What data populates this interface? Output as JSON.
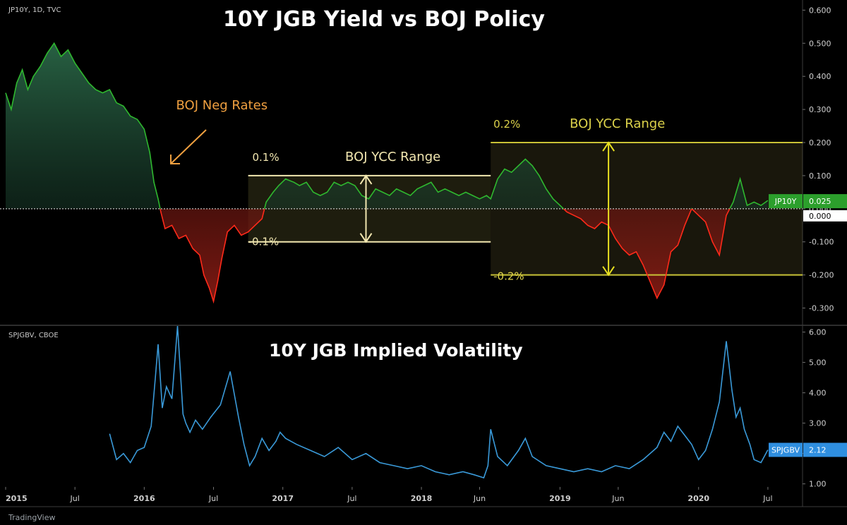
{
  "colors": {
    "up": "#2fb82f",
    "down": "#ff2a1a",
    "vol": "#3a9ad9",
    "ycc_2017": "#f2e7b0",
    "ycc_2018": "#c9c236",
    "neg_rates": "#f0a040",
    "tag_up": "#2c9f2c",
    "tag_vol": "#2f8fe0"
  },
  "top_panel": {
    "symbol": "JP10Y, 1D, TVC",
    "title": "10Y JGB Yield vs BOJ Policy",
    "last_label": "JP10Y",
    "last_value": "0.025"
  },
  "bottom_panel": {
    "symbol": "SPJGBV, CBOE",
    "title": "10Y JGB Implied Volatility",
    "last_label": "SPJGBV",
    "last_value": "2.12"
  },
  "footer": {
    "brand": "TradingView"
  },
  "chart_data": [
    {
      "type": "line",
      "title": "10Y JGB Yield vs BOJ Policy",
      "series_name": "JP10Y",
      "xlim": [
        2015.0,
        2020.75
      ],
      "ylim": [
        -0.35,
        0.62
      ],
      "y_ticks": [
        "0.600",
        "0.500",
        "0.400",
        "0.300",
        "0.200",
        "0.100",
        "0.000",
        "-0.100",
        "-0.200",
        "-0.300"
      ],
      "x": [
        2015.0,
        2015.04,
        2015.08,
        2015.12,
        2015.16,
        2015.2,
        2015.25,
        2015.3,
        2015.35,
        2015.4,
        2015.45,
        2015.5,
        2015.55,
        2015.6,
        2015.65,
        2015.7,
        2015.75,
        2015.8,
        2015.85,
        2015.9,
        2015.95,
        2016.0,
        2016.04,
        2016.07,
        2016.1,
        2016.12,
        2016.15,
        2016.2,
        2016.25,
        2016.3,
        2016.35,
        2016.4,
        2016.43,
        2016.47,
        2016.5,
        2016.53,
        2016.56,
        2016.6,
        2016.65,
        2016.7,
        2016.75,
        2016.8,
        2016.85,
        2016.88,
        2016.93,
        2016.97,
        2017.02,
        2017.08,
        2017.12,
        2017.17,
        2017.22,
        2017.27,
        2017.32,
        2017.37,
        2017.42,
        2017.47,
        2017.52,
        2017.57,
        2017.62,
        2017.67,
        2017.72,
        2017.77,
        2017.82,
        2017.87,
        2017.92,
        2017.97,
        2018.02,
        2018.07,
        2018.12,
        2018.17,
        2018.22,
        2018.27,
        2018.32,
        2018.37,
        2018.42,
        2018.47,
        2018.5,
        2018.55,
        2018.6,
        2018.65,
        2018.7,
        2018.75,
        2018.8,
        2018.85,
        2018.9,
        2018.95,
        2019.0,
        2019.05,
        2019.1,
        2019.15,
        2019.2,
        2019.25,
        2019.3,
        2019.35,
        2019.4,
        2019.45,
        2019.5,
        2019.55,
        2019.6,
        2019.65,
        2019.7,
        2019.75,
        2019.8,
        2019.85,
        2019.9,
        2019.95,
        2020.0,
        2020.05,
        2020.1,
        2020.15,
        2020.2,
        2020.25,
        2020.3,
        2020.35,
        2020.4,
        2020.45,
        2020.5
      ],
      "values": [
        0.35,
        0.3,
        0.38,
        0.42,
        0.36,
        0.4,
        0.43,
        0.47,
        0.5,
        0.46,
        0.48,
        0.44,
        0.41,
        0.38,
        0.36,
        0.35,
        0.36,
        0.32,
        0.31,
        0.28,
        0.27,
        0.24,
        0.17,
        0.08,
        0.03,
        -0.01,
        -0.06,
        -0.05,
        -0.09,
        -0.08,
        -0.12,
        -0.14,
        -0.2,
        -0.24,
        -0.28,
        -0.22,
        -0.15,
        -0.07,
        -0.05,
        -0.08,
        -0.07,
        -0.05,
        -0.03,
        0.02,
        0.05,
        0.07,
        0.09,
        0.08,
        0.07,
        0.08,
        0.05,
        0.04,
        0.05,
        0.08,
        0.07,
        0.08,
        0.07,
        0.04,
        0.03,
        0.06,
        0.05,
        0.04,
        0.06,
        0.05,
        0.04,
        0.06,
        0.07,
        0.08,
        0.05,
        0.06,
        0.05,
        0.04,
        0.05,
        0.04,
        0.03,
        0.04,
        0.03,
        0.09,
        0.12,
        0.11,
        0.13,
        0.15,
        0.13,
        0.1,
        0.06,
        0.03,
        0.01,
        -0.01,
        -0.02,
        -0.03,
        -0.05,
        -0.06,
        -0.04,
        -0.05,
        -0.09,
        -0.12,
        -0.14,
        -0.13,
        -0.17,
        -0.22,
        -0.27,
        -0.23,
        -0.13,
        -0.11,
        -0.05,
        0.0,
        -0.02,
        -0.04,
        -0.1,
        -0.14,
        -0.02,
        0.02,
        0.09,
        0.01,
        0.02,
        0.01,
        0.025
      ],
      "annotations": [
        {
          "text": "BOJ Neg Rates",
          "x": 2016.23,
          "y": 0.3
        },
        {
          "text": "BOJ YCC Range",
          "x": 2017.45,
          "y": 0.145
        },
        {
          "text": "0.1%",
          "x": 2016.78,
          "y": 0.145
        },
        {
          "text": "-0.1%",
          "x": 2016.75,
          "y": -0.11
        },
        {
          "text": "BOJ YCC Range",
          "x": 2019.07,
          "y": 0.245
        },
        {
          "text": "0.2%",
          "x": 2018.52,
          "y": 0.245
        },
        {
          "text": "-0.2%",
          "x": 2018.52,
          "y": -0.215
        }
      ],
      "ranges": [
        {
          "x0": 2016.75,
          "x1": 2018.5,
          "y0": -0.1,
          "y1": 0.1
        },
        {
          "x0": 2018.5,
          "x1": 2020.75,
          "y0": -0.2,
          "y1": 0.2
        }
      ]
    },
    {
      "type": "line",
      "title": "10Y JGB Implied Volatility",
      "series_name": "SPJGBV",
      "xlim": [
        2015.0,
        2020.75
      ],
      "ylim": [
        0.9,
        6.2
      ],
      "y_ticks": [
        "6.00",
        "5.00",
        "4.00",
        "3.00",
        "2.00",
        "1.00"
      ],
      "x_ticks": [
        "2015",
        "Jul",
        "2016",
        "Jul",
        "2017",
        "Jul",
        "2018",
        "Jun",
        "2019",
        "Jun",
        "2020",
        "Jul"
      ],
      "x_tick_pos": [
        2015.0,
        2015.5,
        2016.0,
        2016.5,
        2017.0,
        2017.5,
        2018.0,
        2018.42,
        2019.0,
        2019.42,
        2020.0,
        2020.5
      ],
      "x": [
        2015.75,
        2015.8,
        2015.85,
        2015.9,
        2015.95,
        2016.0,
        2016.05,
        2016.08,
        2016.1,
        2016.13,
        2016.16,
        2016.2,
        2016.24,
        2016.28,
        2016.3,
        2016.33,
        2016.37,
        2016.42,
        2016.48,
        2016.55,
        2016.62,
        2016.68,
        2016.72,
        2016.76,
        2016.8,
        2016.85,
        2016.9,
        2016.95,
        2016.98,
        2017.02,
        2017.1,
        2017.2,
        2017.3,
        2017.4,
        2017.5,
        2017.6,
        2017.7,
        2017.8,
        2017.9,
        2018.0,
        2018.1,
        2018.2,
        2018.3,
        2018.38,
        2018.45,
        2018.48,
        2018.5,
        2018.55,
        2018.62,
        2018.7,
        2018.75,
        2018.8,
        2018.9,
        2019.0,
        2019.1,
        2019.2,
        2019.3,
        2019.4,
        2019.5,
        2019.6,
        2019.7,
        2019.75,
        2019.8,
        2019.85,
        2019.9,
        2019.95,
        2020.0,
        2020.05,
        2020.1,
        2020.15,
        2020.2,
        2020.24,
        2020.27,
        2020.3,
        2020.33,
        2020.37,
        2020.4,
        2020.45,
        2020.5
      ],
      "values": [
        2.65,
        1.8,
        2.0,
        1.7,
        2.1,
        2.2,
        2.9,
        4.5,
        5.6,
        3.5,
        4.2,
        3.8,
        6.2,
        3.3,
        3.0,
        2.7,
        3.1,
        2.8,
        3.2,
        3.6,
        4.7,
        3.2,
        2.3,
        1.6,
        1.9,
        2.5,
        2.1,
        2.4,
        2.7,
        2.5,
        2.3,
        2.1,
        1.9,
        2.2,
        1.8,
        2.0,
        1.7,
        1.6,
        1.5,
        1.6,
        1.4,
        1.3,
        1.4,
        1.3,
        1.2,
        1.6,
        2.8,
        1.9,
        1.6,
        2.1,
        2.5,
        1.9,
        1.6,
        1.5,
        1.4,
        1.5,
        1.4,
        1.6,
        1.5,
        1.8,
        2.2,
        2.7,
        2.4,
        2.9,
        2.6,
        2.3,
        1.8,
        2.1,
        2.8,
        3.7,
        5.7,
        4.1,
        3.2,
        3.5,
        2.8,
        2.3,
        1.8,
        1.7,
        2.12
      ]
    }
  ]
}
